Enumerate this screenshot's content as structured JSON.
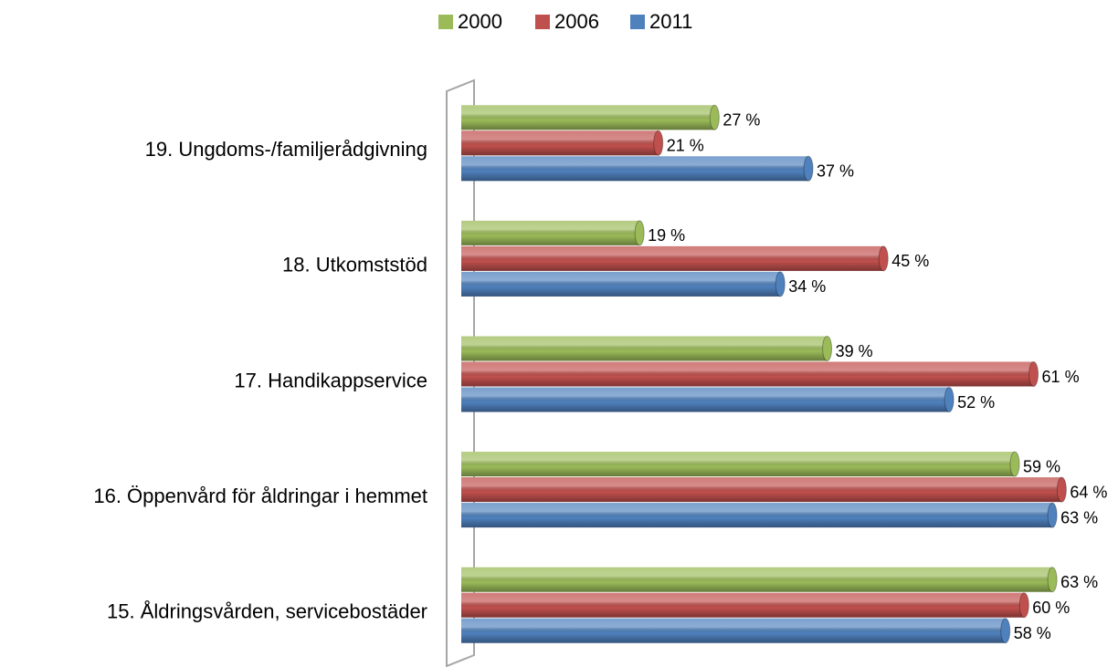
{
  "chart_data": {
    "type": "bar",
    "orientation": "horizontal",
    "categories": [
      "19. Ungdoms-/familjerådgivning",
      "18. Utkomststöd",
      "17. Handikappservice",
      "16. Öppenvård för åldringar i hemmet",
      "15. Åldringsvården, servicebostäder"
    ],
    "series": [
      {
        "name": "2000",
        "color": "#9bbb59",
        "values": [
          27,
          19,
          39,
          59,
          63
        ],
        "value_labels": [
          "27 %",
          "19 %",
          "39 %",
          "59 %",
          "63 %"
        ]
      },
      {
        "name": "2006",
        "color": "#c0504d",
        "values": [
          21,
          45,
          61,
          64,
          60
        ],
        "value_labels": [
          "21 %",
          "45 %",
          "61 %",
          "64 %",
          "60 %"
        ]
      },
      {
        "name": "2011",
        "color": "#4f81bd",
        "values": [
          37,
          34,
          52,
          63,
          58
        ],
        "value_labels": [
          "37 %",
          "34 %",
          "52 %",
          "63 %",
          "58 %"
        ]
      }
    ],
    "xlim": [
      0,
      70
    ],
    "legend": "top"
  }
}
